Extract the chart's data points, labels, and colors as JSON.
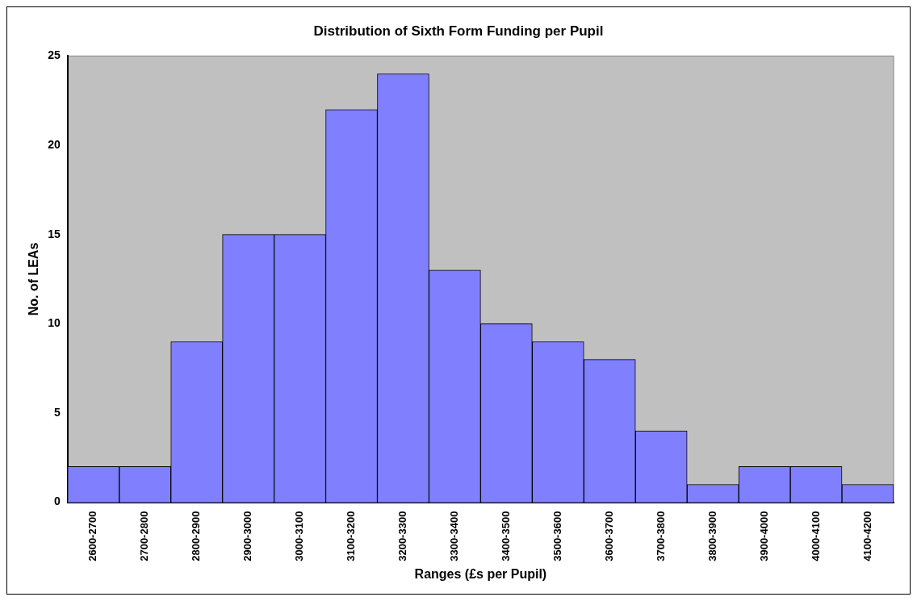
{
  "chart_data": {
    "type": "bar",
    "title": "Distribution of Sixth Form Funding per Pupil",
    "xlabel": "Ranges (£s per Pupil)",
    "ylabel": "No. of LEAs",
    "categories": [
      "2600-2700",
      "2700-2800",
      "2800-2900",
      "2900-3000",
      "3000-3100",
      "3100-3200",
      "3200-3300",
      "3300-3400",
      "3400-3500",
      "3500-3600",
      "3600-3700",
      "3700-3800",
      "3800-3900",
      "3900-4000",
      "4000-4100",
      "4100-4200"
    ],
    "values": [
      2,
      2,
      9,
      15,
      15,
      22,
      24,
      13,
      10,
      9,
      8,
      4,
      1,
      2,
      2,
      1
    ],
    "color": "#8080ff",
    "ylim": [
      0,
      25
    ],
    "yticks": [
      0,
      5,
      10,
      15,
      20,
      25
    ],
    "grid": false,
    "legend": false
  }
}
